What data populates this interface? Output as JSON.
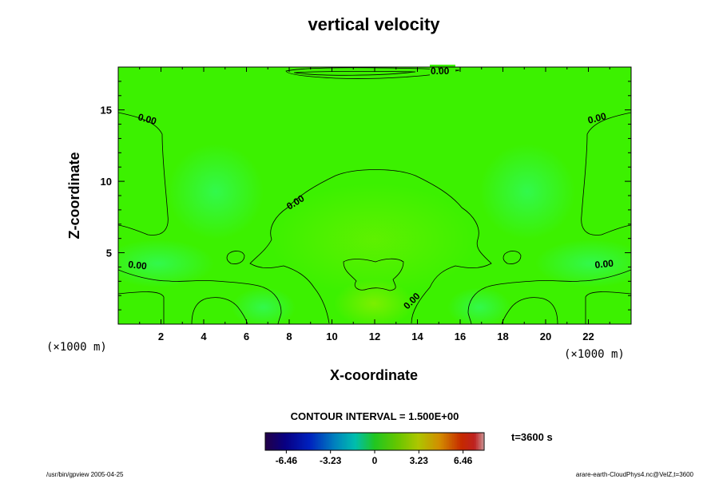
{
  "chart_data": {
    "type": "contour",
    "title": "vertical velocity",
    "xlabel": "X-coordinate",
    "ylabel": "Z-coordinate",
    "x_unit": "(×1000 m)",
    "y_unit": "(×1000 m)",
    "xlim": [
      0,
      24
    ],
    "ylim": [
      0,
      18
    ],
    "x_ticks": [
      2,
      4,
      6,
      8,
      10,
      12,
      14,
      16,
      18,
      20,
      22
    ],
    "y_ticks": [
      5,
      10,
      15
    ],
    "contour_labels": [
      "0.00",
      "0.00",
      "0.00",
      "0.00",
      "0.00",
      "0.00",
      "0.00"
    ],
    "contour_interval_text": "CONTOUR INTERVAL = 1.500E+00",
    "colorbar": {
      "min": -8.0,
      "max": 8.0,
      "tick_labels": [
        "-6.46",
        "-3.23",
        "0",
        "3.23",
        "6.46"
      ],
      "tick_values": [
        -6.46,
        -3.23,
        0,
        3.23,
        6.46
      ]
    },
    "time_label": "t=3600 s",
    "footer_left": "/usr/bin/gpview 2005-04-25",
    "footer_right": "arare-earth-CloudPhys4.nc@VelZ,t=3600"
  }
}
